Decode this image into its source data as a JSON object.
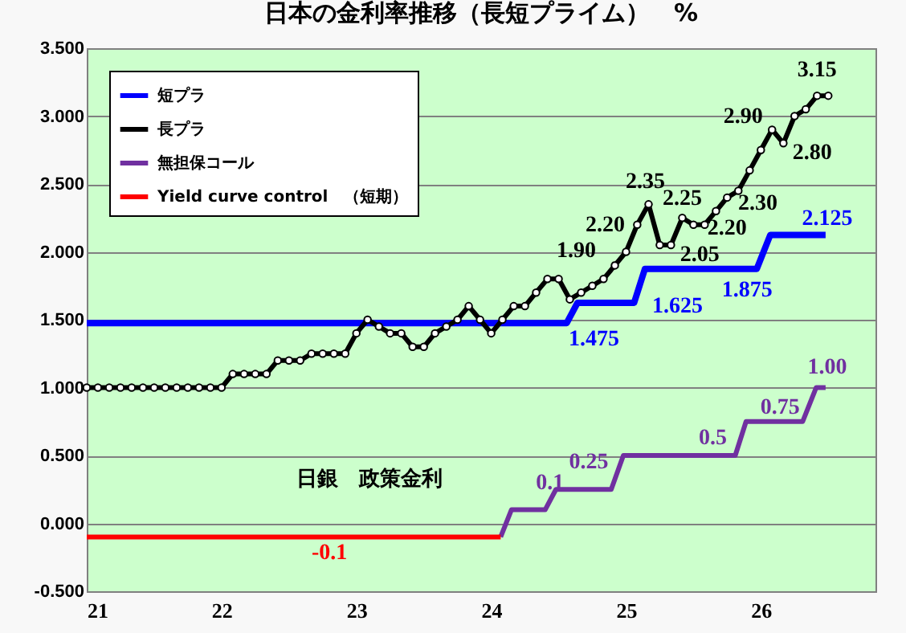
{
  "chart_data": {
    "type": "line",
    "title": "日本の金利率推移（長短プライム）　%",
    "xlim": [
      21,
      26.85
    ],
    "xticks": [
      21,
      22,
      23,
      24,
      25,
      26
    ],
    "ylim": [
      -0.5,
      3.5
    ],
    "yticks": [
      {
        "value": -0.5,
        "label": "-0.500"
      },
      {
        "value": 0,
        "label": "0.000"
      },
      {
        "value": 0.5,
        "label": "0.500"
      },
      {
        "value": 1,
        "label": "1.000"
      },
      {
        "value": 1.5,
        "label": "1.500"
      },
      {
        "value": 2,
        "label": "2.000"
      },
      {
        "value": 2.5,
        "label": "2.500"
      },
      {
        "value": 3,
        "label": "3.000"
      },
      {
        "value": 3.5,
        "label": "3.500"
      }
    ],
    "grid": "y",
    "legend": "top left",
    "line_style": "solid",
    "annotations": [
      "日銀　政策金利"
    ],
    "series": [
      {
        "name": "短プラ",
        "color": "#0000ff",
        "marker": "none",
        "x": [
          21,
          24.56,
          24.64,
          25.06,
          25.14,
          25.97,
          26.07,
          26.48
        ],
        "values": [
          1.475,
          1.475,
          1.625,
          1.625,
          1.875,
          1.875,
          2.125,
          2.125
        ],
        "value_labels": [
          null,
          "1.475",
          null,
          "1.625",
          null,
          "1.875",
          null,
          "2.125"
        ]
      },
      {
        "name": "長プラ",
        "color": "#000000",
        "marker": "circle",
        "x": [
          21.0,
          21.083,
          21.167,
          21.25,
          21.333,
          21.417,
          21.5,
          21.583,
          21.667,
          21.75,
          21.833,
          21.917,
          22.0,
          22.083,
          22.167,
          22.25,
          22.333,
          22.417,
          22.5,
          22.583,
          22.667,
          22.75,
          22.833,
          22.917,
          23.0,
          23.083,
          23.167,
          23.25,
          23.333,
          23.417,
          23.5,
          23.583,
          23.667,
          23.75,
          23.833,
          23.917,
          24.0,
          24.083,
          24.167,
          24.25,
          24.333,
          24.417,
          24.5,
          24.583,
          24.667,
          24.75,
          24.833,
          24.917,
          25.0,
          25.083,
          25.167,
          25.25,
          25.333,
          25.417,
          25.5,
          25.583,
          25.667,
          25.75,
          25.833,
          25.917,
          26.0,
          26.083,
          26.167,
          26.25,
          26.333,
          26.417,
          26.5
        ],
        "values": [
          1.0,
          1.0,
          1.0,
          1.0,
          1.0,
          1.0,
          1.0,
          1.0,
          1.0,
          1.0,
          1.0,
          1.0,
          1.0,
          1.1,
          1.1,
          1.1,
          1.1,
          1.2,
          1.2,
          1.2,
          1.25,
          1.25,
          1.25,
          1.25,
          1.4,
          1.5,
          1.45,
          1.4,
          1.4,
          1.3,
          1.3,
          1.4,
          1.45,
          1.5,
          1.6,
          1.5,
          1.4,
          1.5,
          1.6,
          1.6,
          1.7,
          1.8,
          1.8,
          1.65,
          1.7,
          1.75,
          1.8,
          1.9,
          2.0,
          2.2,
          2.35,
          2.05,
          2.05,
          2.25,
          2.2,
          2.2,
          2.3,
          2.4,
          2.45,
          2.6,
          2.75,
          2.9,
          2.8,
          3.0,
          3.05,
          3.15,
          3.15
        ],
        "value_labels": [
          null,
          null,
          null,
          null,
          null,
          null,
          null,
          null,
          null,
          null,
          null,
          null,
          null,
          null,
          null,
          null,
          null,
          null,
          null,
          null,
          null,
          null,
          null,
          null,
          null,
          null,
          null,
          null,
          null,
          null,
          null,
          null,
          null,
          null,
          null,
          null,
          null,
          null,
          null,
          null,
          null,
          null,
          null,
          null,
          null,
          null,
          null,
          "1.90",
          null,
          "2.20",
          "2.35",
          null,
          "2.05",
          "2.25",
          null,
          "2.20",
          "2.30",
          null,
          null,
          null,
          null,
          "2.90",
          "2.80",
          null,
          null,
          null,
          "3.15"
        ]
      },
      {
        "name": "無担保コール",
        "color": "#7030a0",
        "marker": "none",
        "x": [
          24.07,
          24.15,
          24.4,
          24.48,
          24.89,
          24.98,
          25.81,
          25.89,
          26.31,
          26.41,
          26.48
        ],
        "values": [
          -0.1,
          0.1,
          0.1,
          0.25,
          0.25,
          0.5,
          0.5,
          0.75,
          0.75,
          1.0,
          1.0
        ],
        "value_labels": [
          null,
          null,
          "0.1",
          null,
          "0.25",
          null,
          "0.5",
          null,
          "0.75",
          null,
          "1.00"
        ]
      },
      {
        "name": "Yield curve control　（短期）",
        "color": "#ff0000",
        "marker": "none",
        "x": [
          21,
          22.8,
          24.07
        ],
        "values": [
          -0.1,
          -0.1,
          -0.1
        ],
        "value_labels": [
          null,
          "-0.1",
          null
        ]
      }
    ]
  }
}
